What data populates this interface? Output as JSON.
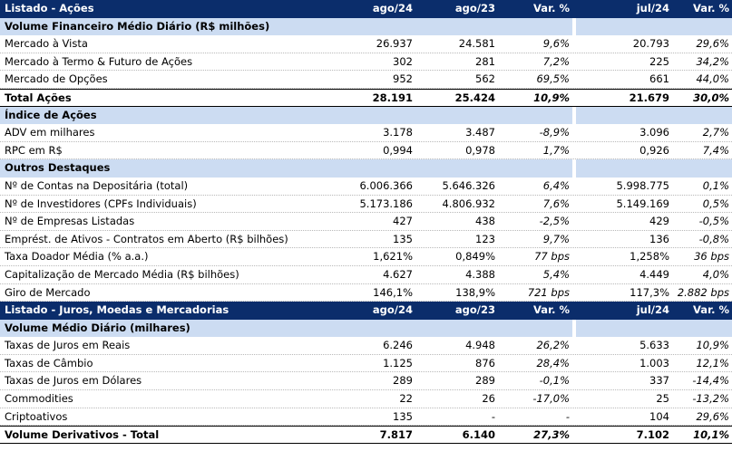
{
  "sections": [
    {
      "header": [
        "Listado - Ações",
        "ago/24",
        "ago/23",
        "Var. %",
        "jul/24",
        "Var. %"
      ],
      "groups": [
        {
          "title": "Volume Financeiro Médio Diário (R$ milhões)",
          "rows": [
            [
              "Mercado à Vista",
              "26.937",
              "24.581",
              "9,6%",
              "20.793",
              "29,6%"
            ],
            [
              "Mercado à Termo & Futuro de Ações",
              "302",
              "281",
              "7,2%",
              "225",
              "34,2%"
            ],
            [
              "Mercado de Opções",
              "952",
              "562",
              "69,5%",
              "661",
              "44,0%"
            ]
          ],
          "total": [
            "Total Ações",
            "28.191",
            "25.424",
            "10,9%",
            "21.679",
            "30,0%"
          ]
        },
        {
          "title": "Índice de Ações",
          "rows": [
            [
              "ADV em milhares",
              "3.178",
              "3.487",
              "-8,9%",
              "3.096",
              "2,7%"
            ],
            [
              "RPC em R$",
              "0,994",
              "0,978",
              "1,7%",
              "0,926",
              "7,4%"
            ]
          ]
        },
        {
          "title": "Outros Destaques",
          "rows": [
            [
              "Nº de Contas na Depositária (total)",
              "6.006.366",
              "5.646.326",
              "6,4%",
              "5.998.775",
              "0,1%"
            ],
            [
              "Nº de Investidores (CPFs Individuais)",
              "5.173.186",
              "4.806.932",
              "7,6%",
              "5.149.169",
              "0,5%"
            ],
            [
              "Nº de Empresas Listadas",
              "427",
              "438",
              "-2,5%",
              "429",
              "-0,5%"
            ],
            [
              "Emprést. de Ativos - Contratos em Aberto (R$ bilhões)",
              "135",
              "123",
              "9,7%",
              "136",
              "-0,8%"
            ],
            [
              "Taxa Doador Média (% a.a.)",
              "1,621%",
              "0,849%",
              "77 bps",
              "1,258%",
              "36 bps"
            ],
            [
              "Capitalização de Mercado Média (R$ bilhões)",
              "4.627",
              "4.388",
              "5,4%",
              "4.449",
              "4,0%"
            ],
            [
              "Giro de Mercado",
              "146,1%",
              "138,9%",
              "721 bps",
              "117,3%",
              "2.882 bps"
            ]
          ]
        }
      ]
    },
    {
      "header": [
        "Listado - Juros, Moedas e Mercadorias",
        "ago/24",
        "ago/23",
        "Var. %",
        "jul/24",
        "Var. %"
      ],
      "groups": [
        {
          "title": "Volume Médio Diário (milhares)",
          "rows": [
            [
              "Taxas de Juros em Reais",
              "6.246",
              "4.948",
              "26,2%",
              "5.633",
              "10,9%"
            ],
            [
              "Taxas de Câmbio",
              "1.125",
              "876",
              "28,4%",
              "1.003",
              "12,1%"
            ],
            [
              "Taxas de Juros em Dólares",
              "289",
              "289",
              "-0,1%",
              "337",
              "-14,4%"
            ],
            [
              "Commodities",
              "22",
              "26",
              "-17,0%",
              "25",
              "-13,2%"
            ],
            [
              "Criptoativos",
              "135",
              "-",
              "-",
              "104",
              "29,6%"
            ]
          ],
          "total": [
            "Volume Derivativos - Total",
            "7.817",
            "6.140",
            "27,3%",
            "7.102",
            "10,1%"
          ]
        }
      ]
    }
  ]
}
